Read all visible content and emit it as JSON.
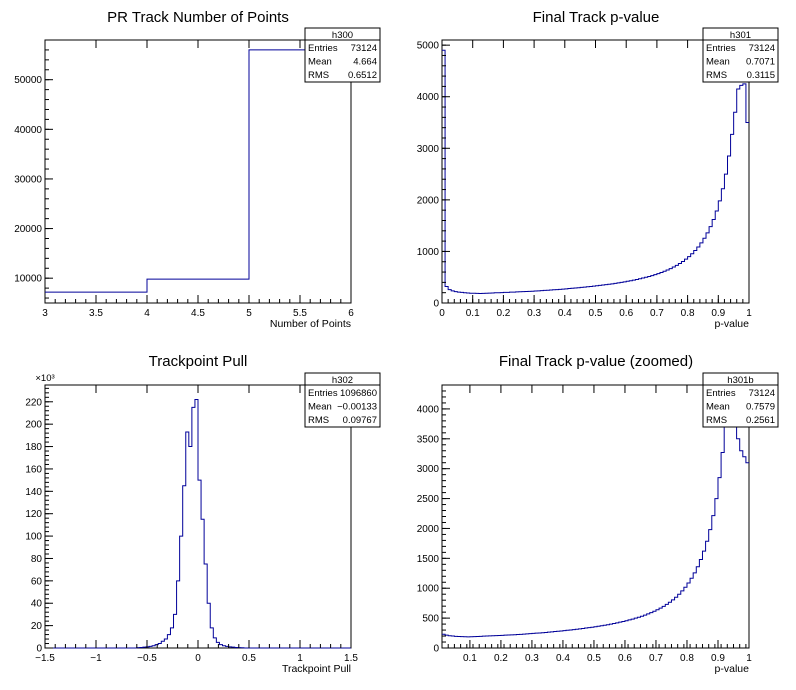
{
  "chart_data": [
    {
      "type": "histogram",
      "title": "PR Track Number of Points",
      "xlabel": "Number of Points",
      "ylabel": "",
      "y_exponent_label": "",
      "xlim": [
        3,
        6
      ],
      "ylim": [
        5000,
        58000
      ],
      "xticks": [
        3,
        3.5,
        4,
        4.5,
        5,
        5.5,
        6
      ],
      "xtick_labels": [
        "3",
        "3.5",
        "4",
        "4.5",
        "5",
        "5.5",
        "6"
      ],
      "yticks": [
        10000,
        20000,
        30000,
        40000,
        50000
      ],
      "ytick_labels": [
        "10000",
        "20000",
        "30000",
        "40000",
        "50000"
      ],
      "bin_edges": [
        3,
        4,
        5,
        6
      ],
      "counts": [
        7200,
        9800,
        56000
      ],
      "stats": {
        "name": "h300",
        "rows": [
          [
            "Entries",
            "73124"
          ],
          [
            "Mean",
            "4.664"
          ],
          [
            "RMS",
            "0.6512"
          ]
        ]
      }
    },
    {
      "type": "histogram",
      "title": "Final Track p-value",
      "xlabel": "p-value",
      "ylabel": "",
      "y_exponent_label": "",
      "xlim": [
        0,
        1
      ],
      "ylim": [
        0,
        5100
      ],
      "xticks": [
        0,
        0.1,
        0.2,
        0.3,
        0.4,
        0.5,
        0.6,
        0.7,
        0.8,
        0.9,
        1
      ],
      "xtick_labels": [
        "0",
        "0.1",
        "0.2",
        "0.3",
        "0.4",
        "0.5",
        "0.6",
        "0.7",
        "0.8",
        "0.9",
        "1"
      ],
      "yticks": [
        0,
        1000,
        2000,
        3000,
        4000,
        5000
      ],
      "ytick_labels": [
        "0",
        "1000",
        "2000",
        "3000",
        "4000",
        "5000"
      ],
      "bin_edges_uniform": {
        "start": 0,
        "stop": 1,
        "n": 100
      },
      "counts": [
        4900,
        320,
        260,
        235,
        220,
        210,
        205,
        200,
        195,
        190,
        188,
        186,
        185,
        187,
        190,
        192,
        195,
        198,
        200,
        202,
        205,
        207,
        210,
        212,
        215,
        218,
        220,
        222,
        225,
        228,
        232,
        236,
        240,
        244,
        248,
        252,
        256,
        260,
        265,
        270,
        275,
        280,
        285,
        290,
        296,
        302,
        308,
        314,
        320,
        327,
        334,
        341,
        348,
        356,
        364,
        372,
        381,
        390,
        400,
        410,
        421,
        432,
        444,
        456,
        470,
        484,
        499,
        515,
        532,
        551,
        570,
        592,
        615,
        640,
        667,
        697,
        730,
        766,
        806,
        850,
        900,
        955,
        1017,
        1087,
        1166,
        1256,
        1360,
        1480,
        1620,
        1785,
        1980,
        2215,
        2500,
        2850,
        3270,
        3700,
        4150,
        4220,
        4250,
        3500
      ],
      "stats": {
        "name": "h301",
        "rows": [
          [
            "Entries",
            "73124"
          ],
          [
            "Mean",
            "0.7071"
          ],
          [
            "RMS",
            "0.3115"
          ]
        ]
      }
    },
    {
      "type": "histogram",
      "title": "Trackpoint Pull",
      "xlabel": "Trackpoint Pull",
      "ylabel": "",
      "y_exponent_label": "×10³",
      "xlim": [
        -1.5,
        1.5
      ],
      "ylim": [
        0,
        235
      ],
      "xticks": [
        -1.5,
        -1,
        -0.5,
        0,
        0.5,
        1,
        1.5
      ],
      "xtick_labels": [
        "−1.5",
        "−1",
        "−0.5",
        "0",
        "0.5",
        "1",
        "1.5"
      ],
      "yticks": [
        0,
        20,
        40,
        60,
        80,
        100,
        120,
        140,
        160,
        180,
        200,
        220
      ],
      "ytick_labels": [
        "0",
        "20",
        "40",
        "60",
        "80",
        "100",
        "120",
        "140",
        "160",
        "180",
        "200",
        "220"
      ],
      "bin_edges_uniform": {
        "start": -1.5,
        "stop": 1.5,
        "n": 100
      },
      "counts": [
        0,
        0,
        0,
        0,
        0,
        0,
        0,
        0,
        0,
        0,
        0,
        0,
        0,
        0,
        0,
        0,
        0,
        0,
        0,
        0,
        0,
        0,
        0,
        0,
        0,
        0,
        0,
        0,
        0,
        0,
        0.3,
        0.5,
        0.8,
        1,
        1.5,
        2,
        3,
        4,
        6,
        8,
        12,
        18,
        30,
        60,
        100,
        145,
        193,
        180,
        215,
        222,
        150,
        115,
        75,
        40,
        18,
        9,
        5,
        3,
        2,
        1.5,
        1,
        0.8,
        0.5,
        0.3,
        0.2,
        0,
        0,
        0,
        0,
        0,
        0,
        0,
        0,
        0,
        0,
        0,
        0,
        0,
        0,
        0,
        0,
        0,
        0,
        0,
        0,
        0,
        0,
        0,
        0,
        0,
        0,
        0,
        0,
        0,
        0,
        0,
        0,
        0,
        0,
        0
      ],
      "stats": {
        "name": "h302",
        "rows": [
          [
            "Entries",
            "1096860"
          ],
          [
            "Mean",
            "−0.00133"
          ],
          [
            "RMS",
            "0.09767"
          ]
        ]
      }
    },
    {
      "type": "histogram",
      "title": "Final Track p-value (zoomed)",
      "xlabel": "p-value",
      "ylabel": "",
      "y_exponent_label": "",
      "xlim": [
        0.01,
        1
      ],
      "ylim": [
        0,
        4400
      ],
      "xticks": [
        0.1,
        0.2,
        0.3,
        0.4,
        0.5,
        0.6,
        0.7,
        0.8,
        0.9,
        1
      ],
      "xtick_labels": [
        "0.1",
        "0.2",
        "0.3",
        "0.4",
        "0.5",
        "0.6",
        "0.7",
        "0.8",
        "0.9",
        "1"
      ],
      "yticks": [
        0,
        500,
        1000,
        1500,
        2000,
        2500,
        3000,
        3500,
        4000
      ],
      "ytick_labels": [
        "0",
        "500",
        "1000",
        "1500",
        "2000",
        "2500",
        "3000",
        "3500",
        "4000"
      ],
      "bin_edges_uniform": {
        "start": 0.01,
        "stop": 1,
        "n": 99
      },
      "counts": [
        230,
        215,
        205,
        200,
        195,
        192,
        190,
        188,
        187,
        188,
        190,
        192,
        195,
        198,
        200,
        202,
        205,
        207,
        210,
        212,
        215,
        218,
        220,
        222,
        225,
        228,
        232,
        236,
        240,
        244,
        248,
        252,
        256,
        260,
        265,
        270,
        275,
        280,
        285,
        290,
        296,
        302,
        308,
        314,
        320,
        327,
        334,
        341,
        348,
        356,
        364,
        372,
        381,
        390,
        400,
        410,
        421,
        432,
        444,
        456,
        470,
        484,
        499,
        515,
        532,
        551,
        570,
        592,
        615,
        640,
        667,
        697,
        730,
        766,
        806,
        850,
        900,
        955,
        1017,
        1087,
        1166,
        1256,
        1360,
        1480,
        1620,
        1785,
        1980,
        2215,
        2500,
        2850,
        3270,
        3700,
        4150,
        4220,
        4250,
        3500,
        3300,
        3200,
        3100
      ],
      "stats": {
        "name": "h301b",
        "rows": [
          [
            "Entries",
            "73124"
          ],
          [
            "Mean",
            "0.7579"
          ],
          [
            "RMS",
            "0.2561"
          ]
        ]
      }
    }
  ]
}
